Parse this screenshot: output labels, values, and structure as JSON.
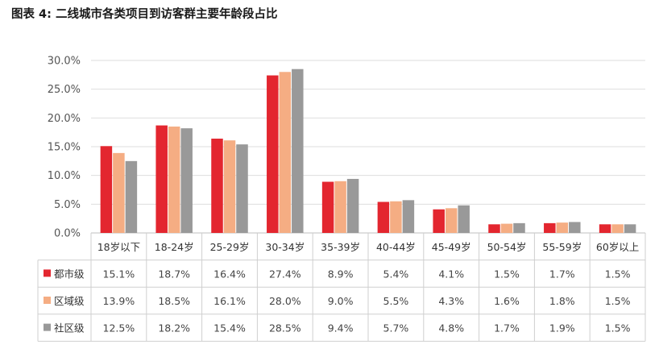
{
  "title": "图表 4: 二线城市各类项目到访客群主要年龄段占比",
  "chart_data": {
    "type": "bar",
    "title": "图表 4: 二线城市各类项目到访客群主要年龄段占比",
    "xlabel": "",
    "ylabel": "",
    "ylim": [
      0,
      30
    ],
    "yticks": [
      "0.0%",
      "5.0%",
      "10.0%",
      "15.0%",
      "20.0%",
      "25.0%",
      "30.0%"
    ],
    "grid": true,
    "legend": "data-table-left",
    "categories": [
      "18岁以下",
      "18-24岁",
      "25-29岁",
      "30-34岁",
      "35-39岁",
      "40-44岁",
      "45-49岁",
      "50-54岁",
      "55-59岁",
      "60岁以上"
    ],
    "series": [
      {
        "name": "都市级",
        "color": "#e3262f",
        "values": [
          15.1,
          18.7,
          16.4,
          27.4,
          8.9,
          5.4,
          4.1,
          1.5,
          1.7,
          1.5
        ],
        "labels": [
          "15.1%",
          "18.7%",
          "16.4%",
          "27.4%",
          "8.9%",
          "5.4%",
          "4.1%",
          "1.5%",
          "1.7%",
          "1.5%"
        ]
      },
      {
        "name": "区域级",
        "color": "#f5ad83",
        "values": [
          13.9,
          18.5,
          16.1,
          28.0,
          9.0,
          5.5,
          4.3,
          1.6,
          1.8,
          1.5
        ],
        "labels": [
          "13.9%",
          "18.5%",
          "16.1%",
          "28.0%",
          "9.0%",
          "5.5%",
          "4.3%",
          "1.6%",
          "1.8%",
          "1.5%"
        ]
      },
      {
        "name": "社区级",
        "color": "#999999",
        "values": [
          12.5,
          18.2,
          15.4,
          28.5,
          9.4,
          5.7,
          4.8,
          1.7,
          1.9,
          1.5
        ],
        "labels": [
          "12.5%",
          "18.2%",
          "15.4%",
          "28.5%",
          "9.4%",
          "5.7%",
          "4.8%",
          "1.7%",
          "1.9%",
          "1.5%"
        ]
      }
    ]
  }
}
